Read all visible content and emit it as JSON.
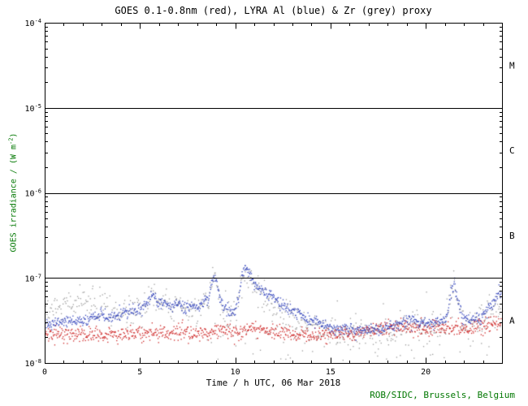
{
  "page": {
    "credit": "ROB/SIDC, Brussels, Belgium"
  },
  "chart_data": {
    "type": "scatter",
    "title": "GOES 0.1-0.8nm (red), LYRA Al (blue) & Zr (grey) proxy",
    "xlabel": "Time / h UTC, 06 Mar 2018",
    "ylabel": {
      "prefix": "GOES irradiance / (W m",
      "sup": "-2",
      "suffix": ")"
    },
    "x_range_hours": [
      0,
      24
    ],
    "y_log10_range": [
      -8,
      -4
    ],
    "x_major_ticks": [
      {
        "label": "0",
        "x": 0
      },
      {
        "label": "5",
        "x": 5
      },
      {
        "label": "10",
        "x": 10
      },
      {
        "label": "15",
        "x": 15
      },
      {
        "label": "20",
        "x": 20
      }
    ],
    "x_minor_step_hours": 1,
    "y_major_ticks": [
      {
        "label_base": "10",
        "label_exp": "-8",
        "log10": -8
      },
      {
        "label_base": "10",
        "label_exp": "-7",
        "log10": -7
      },
      {
        "label_base": "10",
        "label_exp": "-6",
        "log10": -6
      },
      {
        "label_base": "10",
        "label_exp": "-5",
        "log10": -5
      },
      {
        "label_base": "10",
        "label_exp": "-4",
        "log10": -4
      }
    ],
    "flare_class_lines_log10": [
      -7,
      -6,
      -5
    ],
    "flare_class_labels": [
      {
        "label": "M",
        "log10": -4.5
      },
      {
        "label": "C",
        "log10": -5.5
      },
      {
        "label": "B",
        "log10": -6.5
      },
      {
        "label": "A",
        "log10": -7.5
      }
    ],
    "colors": {
      "axis": "#000000",
      "title_text": "#000000",
      "annotation_green": "#007700",
      "goes_red": "#cc2222",
      "lyra_al_blue": "#3344bb",
      "lyra_zr_grey": "#9a9a9a"
    },
    "legend_note": "GOES 0.1-0.8nm = red, LYRA Al proxy = blue, LYRA Zr proxy = grey",
    "series": [
      {
        "name": "LYRA Zr proxy",
        "color_key": "lyra_zr_grey",
        "points_per_hour": 26,
        "jitter_log10": 0.09,
        "anchors_log10": [
          [
            0,
            -7.36
          ],
          [
            0.4,
            -7.33
          ],
          [
            0.8,
            -7.35
          ],
          [
            1.2,
            -7.3
          ],
          [
            1.6,
            -7.28
          ],
          [
            2,
            -7.3
          ],
          [
            2.4,
            -7.26
          ],
          [
            2.8,
            -7.3
          ],
          [
            3.2,
            -7.33
          ],
          [
            3.6,
            -7.4
          ],
          [
            4,
            -7.44
          ],
          [
            4.5,
            -7.4
          ],
          [
            5,
            -7.36
          ],
          [
            5.4,
            -7.28
          ],
          [
            5.7,
            -7.2
          ],
          [
            5.9,
            -7.33
          ],
          [
            6.2,
            -7.3
          ],
          [
            6.5,
            -7.36
          ],
          [
            7,
            -7.32
          ],
          [
            7.5,
            -7.36
          ],
          [
            8,
            -7.36
          ],
          [
            8.6,
            -7.28
          ],
          [
            8.8,
            -7.08
          ],
          [
            9,
            -7.0
          ],
          [
            9.15,
            -7.25
          ],
          [
            9.4,
            -7.4
          ],
          [
            9.7,
            -7.45
          ],
          [
            10,
            -7.48
          ],
          [
            10.2,
            -7.25
          ],
          [
            10.35,
            -7.0
          ],
          [
            10.5,
            -6.92
          ],
          [
            10.65,
            -6.98
          ],
          [
            10.8,
            -7.06
          ],
          [
            11,
            -7.12
          ],
          [
            11.4,
            -7.2
          ],
          [
            11.8,
            -7.28
          ],
          [
            12.2,
            -7.35
          ],
          [
            12.6,
            -7.42
          ],
          [
            13,
            -7.48
          ],
          [
            13.5,
            -7.54
          ],
          [
            14,
            -7.58
          ],
          [
            14.5,
            -7.62
          ],
          [
            15,
            -7.65
          ],
          [
            15.5,
            -7.68
          ],
          [
            16,
            -7.65
          ],
          [
            16.5,
            -7.68
          ],
          [
            17,
            -7.65
          ],
          [
            17.5,
            -7.68
          ],
          [
            18,
            -7.64
          ],
          [
            18.5,
            -7.6
          ],
          [
            19,
            -7.56
          ],
          [
            19.5,
            -7.52
          ],
          [
            20,
            -7.55
          ],
          [
            20.5,
            -7.58
          ],
          [
            21,
            -7.5
          ],
          [
            21.35,
            -7.18
          ],
          [
            21.5,
            -7.04
          ],
          [
            21.65,
            -7.28
          ],
          [
            22,
            -7.5
          ],
          [
            22.4,
            -7.55
          ],
          [
            22.8,
            -7.5
          ],
          [
            23.2,
            -7.4
          ],
          [
            23.6,
            -7.32
          ],
          [
            24,
            -7.38
          ]
        ]
      },
      {
        "name": "LYRA Zr proxy scattered",
        "color_key": "lyra_zr_grey",
        "points_per_hour": 7,
        "jitter_log10": 0.18,
        "anchors_log10": [
          [
            8.5,
            -7.7
          ],
          [
            10,
            -7.66
          ],
          [
            12,
            -7.7
          ],
          [
            14,
            -7.74
          ],
          [
            16,
            -7.74
          ],
          [
            18,
            -7.77
          ],
          [
            20,
            -7.74
          ],
          [
            22,
            -7.71
          ],
          [
            24,
            -7.6
          ]
        ]
      },
      {
        "name": "GOES 0.1-0.8nm",
        "color_key": "goes_red",
        "points_per_hour": 42,
        "jitter_log10": 0.045,
        "anchors_log10": [
          [
            0,
            -7.66
          ],
          [
            1,
            -7.68
          ],
          [
            2,
            -7.66
          ],
          [
            3,
            -7.69
          ],
          [
            4,
            -7.67
          ],
          [
            5,
            -7.64
          ],
          [
            6,
            -7.66
          ],
          [
            7,
            -7.64
          ],
          [
            8,
            -7.66
          ],
          [
            9,
            -7.62
          ],
          [
            10,
            -7.65
          ],
          [
            11,
            -7.6
          ],
          [
            12,
            -7.63
          ],
          [
            13,
            -7.66
          ],
          [
            14,
            -7.68
          ],
          [
            15,
            -7.66
          ],
          [
            16,
            -7.64
          ],
          [
            17,
            -7.62
          ],
          [
            18,
            -7.6
          ],
          [
            19,
            -7.58
          ],
          [
            20,
            -7.61
          ],
          [
            21,
            -7.58
          ],
          [
            22,
            -7.6
          ],
          [
            23,
            -7.56
          ],
          [
            23.5,
            -7.52
          ],
          [
            24,
            -7.5
          ]
        ]
      },
      {
        "name": "LYRA Al proxy",
        "color_key": "lyra_al_blue",
        "points_per_hour": 45,
        "jitter_log10": 0.035,
        "anchors_log10": [
          [
            0,
            -7.56
          ],
          [
            0.5,
            -7.54
          ],
          [
            1,
            -7.52
          ],
          [
            1.5,
            -7.5
          ],
          [
            2,
            -7.52
          ],
          [
            2.5,
            -7.47
          ],
          [
            3,
            -7.44
          ],
          [
            3.5,
            -7.47
          ],
          [
            4,
            -7.42
          ],
          [
            4.5,
            -7.4
          ],
          [
            5,
            -7.36
          ],
          [
            5.4,
            -7.28
          ],
          [
            5.7,
            -7.18
          ],
          [
            5.9,
            -7.32
          ],
          [
            6.2,
            -7.28
          ],
          [
            6.5,
            -7.34
          ],
          [
            7,
            -7.3
          ],
          [
            7.3,
            -7.36
          ],
          [
            7.7,
            -7.3
          ],
          [
            8,
            -7.35
          ],
          [
            8.3,
            -7.3
          ],
          [
            8.6,
            -7.25
          ],
          [
            8.8,
            -7.05
          ],
          [
            9,
            -6.97
          ],
          [
            9.15,
            -7.2
          ],
          [
            9.4,
            -7.35
          ],
          [
            9.7,
            -7.38
          ],
          [
            10,
            -7.42
          ],
          [
            10.2,
            -7.2
          ],
          [
            10.35,
            -6.95
          ],
          [
            10.5,
            -6.88
          ],
          [
            10.65,
            -6.92
          ],
          [
            10.8,
            -7.0
          ],
          [
            11,
            -7.06
          ],
          [
            11.3,
            -7.12
          ],
          [
            11.6,
            -7.18
          ],
          [
            12,
            -7.24
          ],
          [
            12.4,
            -7.3
          ],
          [
            12.8,
            -7.35
          ],
          [
            13.2,
            -7.4
          ],
          [
            13.6,
            -7.46
          ],
          [
            14,
            -7.5
          ],
          [
            14.5,
            -7.55
          ],
          [
            15,
            -7.58
          ],
          [
            15.5,
            -7.62
          ],
          [
            16,
            -7.6
          ],
          [
            16.5,
            -7.63
          ],
          [
            17,
            -7.6
          ],
          [
            17.5,
            -7.62
          ],
          [
            18,
            -7.58
          ],
          [
            18.5,
            -7.55
          ],
          [
            19,
            -7.52
          ],
          [
            19.3,
            -7.48
          ],
          [
            19.6,
            -7.52
          ],
          [
            20,
            -7.5
          ],
          [
            20.4,
            -7.55
          ],
          [
            20.8,
            -7.5
          ],
          [
            21.1,
            -7.45
          ],
          [
            21.35,
            -7.15
          ],
          [
            21.5,
            -7.02
          ],
          [
            21.65,
            -7.25
          ],
          [
            21.9,
            -7.45
          ],
          [
            22.2,
            -7.5
          ],
          [
            22.6,
            -7.48
          ],
          [
            23,
            -7.45
          ],
          [
            23.3,
            -7.35
          ],
          [
            23.6,
            -7.3
          ],
          [
            23.85,
            -7.15
          ],
          [
            24,
            -7.3
          ]
        ]
      }
    ]
  }
}
